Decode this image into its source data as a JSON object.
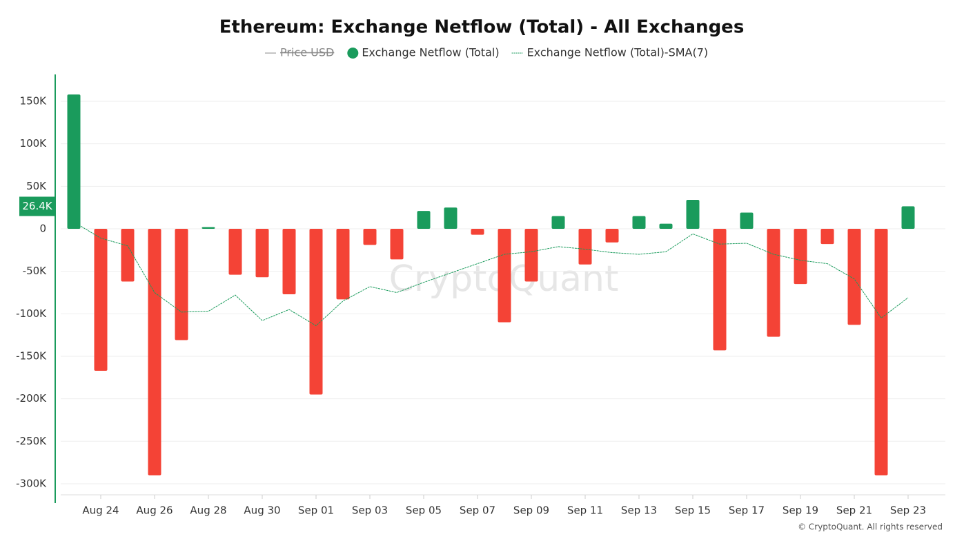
{
  "chart_data": {
    "type": "bar",
    "title": "Ethereum: Exchange Netflow (Total) - All Exchanges",
    "watermark": "CryptoQuant",
    "footer": "© CryptoQuant. All rights reserved",
    "categories": [
      null,
      "Aug 24",
      null,
      "Aug 26",
      null,
      "Aug 28",
      null,
      "Aug 30",
      null,
      "Sep 01",
      null,
      "Sep 03",
      null,
      "Sep 05",
      null,
      "Sep 07",
      null,
      "Sep 09",
      null,
      "Sep 11",
      null,
      "Sep 13",
      null,
      "Sep 15",
      null,
      "Sep 17",
      null,
      "Sep 19",
      null,
      "Sep 21",
      null,
      "Sep 23"
    ],
    "series": [
      {
        "name": "Price USD",
        "color": "#888888",
        "hidden": true,
        "values": [
          null,
          null,
          null,
          null,
          null,
          null,
          null,
          null,
          null,
          null,
          null,
          null,
          null,
          null,
          null,
          null,
          null,
          null,
          null,
          null,
          null,
          null,
          null,
          null,
          null,
          null,
          null,
          null,
          null,
          null,
          null,
          null
        ]
      },
      {
        "name": "Exchange Netflow (Total)",
        "color": "#1a9b5c",
        "negative_color": "#f44336",
        "values": [
          158000,
          -167000,
          -62000,
          -290000,
          -131000,
          2000,
          -54000,
          -57000,
          -77000,
          -195000,
          -83000,
          -19000,
          -36000,
          21000,
          25000,
          -7000,
          -110000,
          -62000,
          15000,
          -42000,
          -16000,
          15000,
          6000,
          34000,
          -143000,
          19000,
          -127000,
          -65000,
          -18000,
          -113000,
          -290000,
          26400
        ],
        "value_labels": [
          null,
          null,
          null,
          null,
          null,
          null,
          null,
          null,
          null,
          null,
          null,
          null,
          null,
          null,
          null,
          null,
          null,
          null,
          null,
          null,
          null,
          null,
          null,
          null,
          null,
          null,
          null,
          null,
          null,
          null,
          null,
          "26.4K"
        ]
      },
      {
        "name": "Exchange Netflow (Total)-SMA(7)",
        "color": "#1a9b5c",
        "dashed": true,
        "values": [
          8000,
          -11000,
          -20000,
          -75000,
          -98000,
          -97000,
          -78000,
          -108000,
          -95000,
          -114000,
          -85000,
          -68000,
          -75000,
          -63000,
          -52000,
          -41000,
          -30000,
          -27000,
          -21000,
          -24000,
          -28000,
          -30000,
          -27000,
          -6000,
          -18000,
          -17000,
          -30000,
          -37000,
          -41000,
          -59000,
          -105000,
          -81000
        ]
      }
    ],
    "ylim": [
      -313000,
      180000
    ],
    "yticks": [
      {
        "value": -300000,
        "label": "-300K"
      },
      {
        "value": -250000,
        "label": "-250K"
      },
      {
        "value": -200000,
        "label": "-200K"
      },
      {
        "value": -150000,
        "label": "-150K"
      },
      {
        "value": -100000,
        "label": "-100K"
      },
      {
        "value": -50000,
        "label": "-50K"
      },
      0,
      {
        "value": 50000,
        "label": "50K"
      },
      {
        "value": 100000,
        "label": "100K"
      },
      {
        "value": 150000,
        "label": "150K"
      }
    ],
    "grid": true
  }
}
